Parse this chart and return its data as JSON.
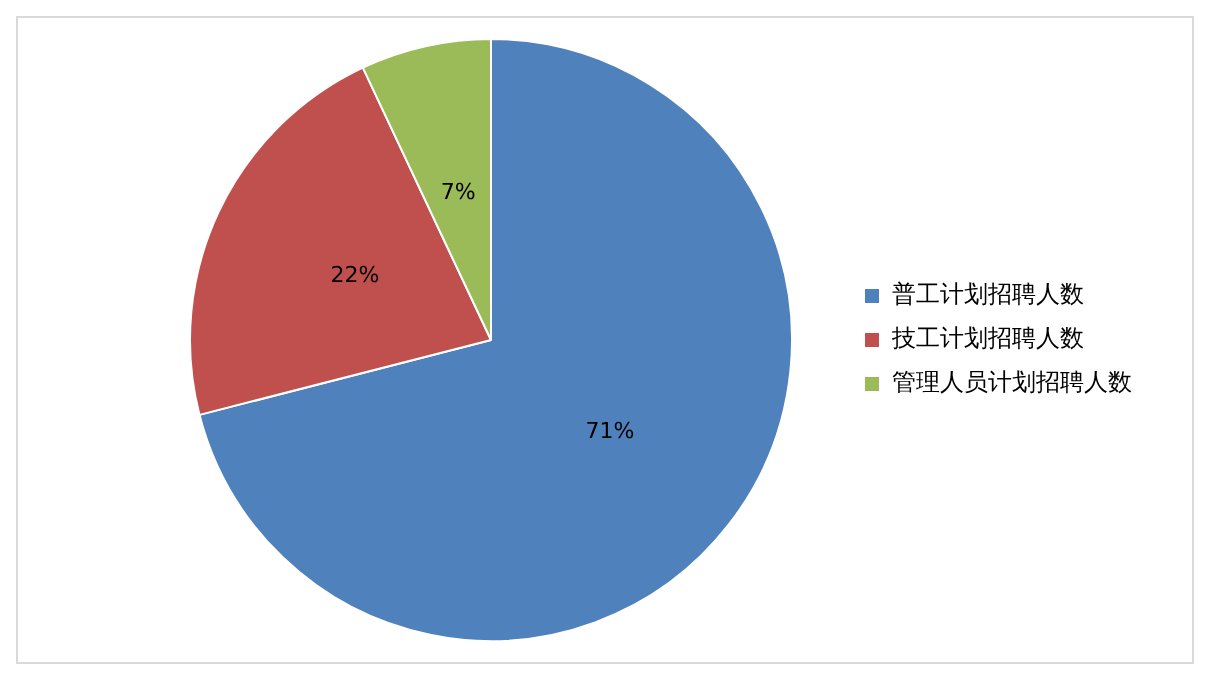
{
  "chart_data": {
    "type": "pie",
    "categories": [
      "普工计划招聘人数",
      "技工计划招聘人数",
      "管理人员计划招聘人数"
    ],
    "values": [
      71,
      22,
      7
    ],
    "colors": [
      "#4f81bd",
      "#c0504d",
      "#9bbb59"
    ],
    "value_labels": [
      "71%",
      "22%",
      "7%"
    ],
    "legend": "right"
  }
}
